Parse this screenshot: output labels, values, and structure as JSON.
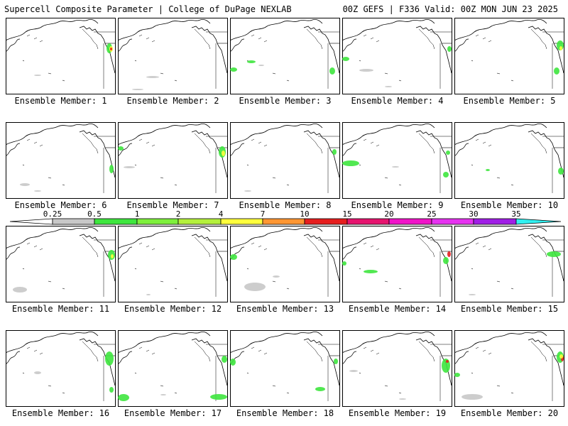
{
  "header": {
    "left_title": "Supercell Composite Parameter | College of DuPage NEXLAB",
    "right_title": "00Z GEFS | F336 Valid: 00Z MON JUN 23 2025"
  },
  "members": [
    {
      "label": "Ensemble Member: 1"
    },
    {
      "label": "Ensemble Member: 2"
    },
    {
      "label": "Ensemble Member: 3"
    },
    {
      "label": "Ensemble Member: 4"
    },
    {
      "label": "Ensemble Member: 5"
    },
    {
      "label": "Ensemble Member: 6"
    },
    {
      "label": "Ensemble Member: 7"
    },
    {
      "label": "Ensemble Member: 8"
    },
    {
      "label": "Ensemble Member: 9"
    },
    {
      "label": "Ensemble Member: 10"
    },
    {
      "label": "Ensemble Member: 11"
    },
    {
      "label": "Ensemble Member: 12"
    },
    {
      "label": "Ensemble Member: 13"
    },
    {
      "label": "Ensemble Member: 14"
    },
    {
      "label": "Ensemble Member: 15"
    },
    {
      "label": "Ensemble Member: 16"
    },
    {
      "label": "Ensemble Member: 17"
    },
    {
      "label": "Ensemble Member: 18"
    },
    {
      "label": "Ensemble Member: 19"
    },
    {
      "label": "Ensemble Member: 20"
    }
  ],
  "colorbar": {
    "ticks": [
      "0.25",
      "0.5",
      "1",
      "2",
      "4",
      "7",
      "10",
      "15",
      "20",
      "25",
      "30",
      "35"
    ],
    "colors": [
      "#c8c8c8",
      "#3ee63e",
      "#7ef03c",
      "#b4f03c",
      "#ffff3c",
      "#ff9632",
      "#e61e1e",
      "#e6146e",
      "#f014c8",
      "#e632f0",
      "#a01ee6",
      "#a064e6",
      "#32f0f0"
    ]
  }
}
